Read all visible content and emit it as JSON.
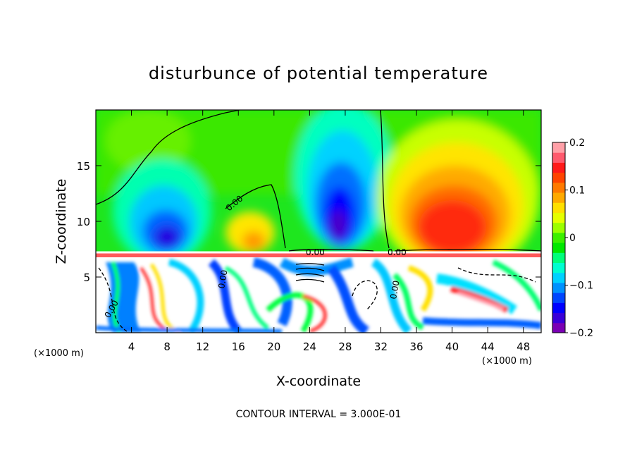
{
  "chart_data": {
    "type": "heatmap",
    "title": "disturbunce of potential temperature",
    "xlabel": "X-coordinate",
    "ylabel": "Z-coordinate",
    "x_unit": "(×1000 m)",
    "z_unit": "(×1000 m)",
    "xlim": [
      0,
      50
    ],
    "ylim": [
      0,
      20
    ],
    "x_ticks": [
      4,
      8,
      12,
      16,
      20,
      24,
      28,
      32,
      36,
      40,
      44,
      48
    ],
    "y_ticks": [
      5,
      10,
      15
    ],
    "colorbar": {
      "range": [
        -0.2,
        0.2
      ],
      "ticks": [
        0.2,
        0.1,
        0,
        -0.1,
        -0.2
      ],
      "tick_labels": [
        "0.2",
        "0.1",
        "0",
        "−0.1",
        "−0.2"
      ],
      "colors": [
        "#7a00b4",
        "#3a00d8",
        "#0000ff",
        "#0046ff",
        "#0092ff",
        "#00d2ff",
        "#00ffd0",
        "#00ff7a",
        "#00e800",
        "#3cf000",
        "#9cff00",
        "#e6ff00",
        "#ffe000",
        "#ffaa00",
        "#ff7a00",
        "#ff4400",
        "#ff1a1a",
        "#ff5a6e",
        "#ffa0a8"
      ]
    },
    "contour_labels": [
      "0.00",
      "0.00",
      "0.00",
      "0.00",
      "0.00",
      "0.00"
    ],
    "footer": "CONTOUR INTERVAL = 3.000E-01"
  }
}
